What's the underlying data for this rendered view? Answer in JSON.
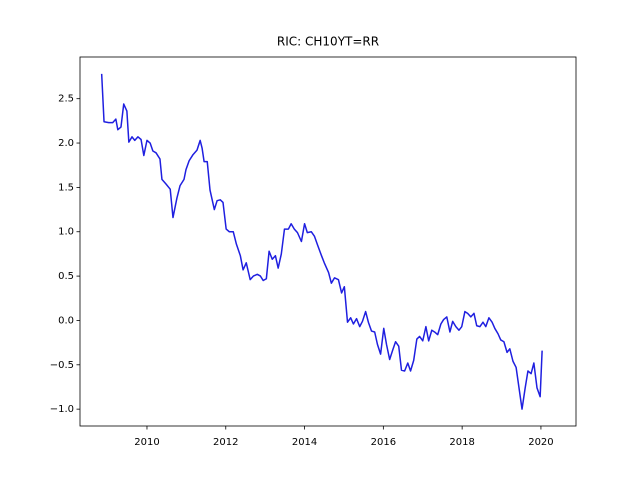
{
  "chart_data": {
    "type": "line",
    "title": "RIC: CH10YT=RR",
    "xlim": [
      2008.3,
      2020.89
    ],
    "xticks": [
      2010,
      2012,
      2014,
      2016,
      2018,
      2020
    ],
    "ylim": [
      -1.19,
      2.97
    ],
    "yticks": [
      {
        "value": -1.0,
        "label": "−1.0"
      },
      {
        "value": -0.5,
        "label": "−0.5"
      },
      {
        "value": 0.0,
        "label": "0.0"
      },
      0.5,
      {
        "value": 1.0,
        "label": "1.0"
      },
      1.5,
      {
        "value": 2.0,
        "label": "2.0"
      },
      2.5
    ],
    "grid": false,
    "series": [
      {
        "color": "#1f1fe0",
        "x": [
          2008.85,
          2008.91,
          2009.03,
          2009.13,
          2009.21,
          2009.26,
          2009.34,
          2009.41,
          2009.49,
          2009.54,
          2009.62,
          2009.69,
          2009.77,
          2009.85,
          2009.92,
          2010.0,
          2010.08,
          2010.15,
          2010.23,
          2010.33,
          2010.38,
          2010.48,
          2010.59,
          2010.66,
          2010.76,
          2010.84,
          2010.94,
          2010.99,
          2011.07,
          2011.17,
          2011.27,
          2011.35,
          2011.4,
          2011.45,
          2011.53,
          2011.6,
          2011.71,
          2011.78,
          2011.86,
          2011.93,
          2012.01,
          2012.09,
          2012.19,
          2012.27,
          2012.37,
          2012.44,
          2012.52,
          2012.62,
          2012.7,
          2012.8,
          2012.88,
          2012.95,
          2013.03,
          2013.1,
          2013.18,
          2013.26,
          2013.33,
          2013.41,
          2013.49,
          2013.59,
          2013.66,
          2013.74,
          2013.82,
          2013.92,
          2014.0,
          2014.07,
          2014.17,
          2014.25,
          2014.33,
          2014.43,
          2014.5,
          2014.61,
          2014.68,
          2014.76,
          2014.86,
          2014.94,
          2015.01,
          2015.09,
          2015.17,
          2015.24,
          2015.32,
          2015.4,
          2015.47,
          2015.55,
          2015.62,
          2015.7,
          2015.78,
          2015.85,
          2015.93,
          2016.01,
          2016.08,
          2016.16,
          2016.24,
          2016.31,
          2016.39,
          2016.46,
          2016.54,
          2016.62,
          2016.69,
          2016.77,
          2016.85,
          2016.92,
          2017.0,
          2017.08,
          2017.15,
          2017.23,
          2017.3,
          2017.38,
          2017.46,
          2017.53,
          2017.61,
          2017.69,
          2017.76,
          2017.84,
          2017.92,
          2017.99,
          2018.07,
          2018.14,
          2018.22,
          2018.3,
          2018.37,
          2018.45,
          2018.53,
          2018.6,
          2018.68,
          2018.76,
          2018.83,
          2018.91,
          2018.98,
          2019.06,
          2019.14,
          2019.21,
          2019.29,
          2019.37,
          2019.44,
          2019.52,
          2019.6,
          2019.67,
          2019.75,
          2019.82,
          2019.9,
          2019.98,
          2020.03
        ],
        "values": [
          2.78,
          2.24,
          2.23,
          2.23,
          2.27,
          2.15,
          2.18,
          2.44,
          2.36,
          2.01,
          2.07,
          2.03,
          2.07,
          2.04,
          1.86,
          2.03,
          2.0,
          1.91,
          1.89,
          1.82,
          1.59,
          1.54,
          1.48,
          1.16,
          1.38,
          1.52,
          1.59,
          1.7,
          1.8,
          1.87,
          1.92,
          2.03,
          1.94,
          1.79,
          1.79,
          1.47,
          1.25,
          1.35,
          1.36,
          1.33,
          1.03,
          1.0,
          1.0,
          0.86,
          0.73,
          0.57,
          0.65,
          0.46,
          0.5,
          0.52,
          0.5,
          0.45,
          0.47,
          0.78,
          0.69,
          0.73,
          0.59,
          0.75,
          1.03,
          1.03,
          1.09,
          1.03,
          0.99,
          0.89,
          1.09,
          0.99,
          1.0,
          0.95,
          0.85,
          0.73,
          0.65,
          0.54,
          0.42,
          0.48,
          0.46,
          0.31,
          0.38,
          -0.02,
          0.03,
          -0.04,
          0.02,
          -0.07,
          -0.01,
          0.1,
          -0.02,
          -0.12,
          -0.13,
          -0.27,
          -0.38,
          -0.09,
          -0.27,
          -0.44,
          -0.33,
          -0.24,
          -0.29,
          -0.56,
          -0.57,
          -0.48,
          -0.57,
          -0.45,
          -0.21,
          -0.18,
          -0.23,
          -0.07,
          -0.23,
          -0.11,
          -0.13,
          -0.16,
          -0.04,
          0.01,
          0.04,
          -0.13,
          -0.01,
          -0.07,
          -0.11,
          -0.07,
          0.1,
          0.08,
          0.04,
          0.08,
          -0.06,
          -0.07,
          -0.02,
          -0.07,
          0.03,
          -0.02,
          -0.09,
          -0.15,
          -0.22,
          -0.24,
          -0.36,
          -0.32,
          -0.46,
          -0.53,
          -0.75,
          -1.0,
          -0.76,
          -0.57,
          -0.6,
          -0.48,
          -0.76,
          -0.86,
          -0.34
        ]
      }
    ]
  }
}
